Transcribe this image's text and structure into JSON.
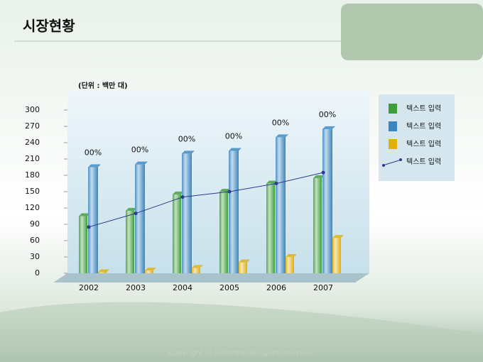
{
  "header": {
    "title": "시장현황"
  },
  "footer": "Copyright ⓒ bizforms All rights reserved.",
  "chart_data": {
    "type": "bar-line",
    "unit_label": "(단위 : 백만 대)",
    "categories": [
      "2002",
      "2003",
      "2004",
      "2005",
      "2006",
      "2007"
    ],
    "series": [
      {
        "name": "텍스트 입력",
        "color": "#3f9e3a",
        "kind": "bar",
        "values": [
          105,
          115,
          145,
          150,
          165,
          175
        ]
      },
      {
        "name": "텍스트 입력",
        "color": "#3a86c0",
        "kind": "bar",
        "values": [
          195,
          200,
          220,
          225,
          250,
          265
        ]
      },
      {
        "name": "텍스트 입력",
        "color": "#e0b00c",
        "kind": "bar",
        "values": [
          2,
          5,
          10,
          20,
          30,
          65
        ]
      },
      {
        "name": "텍스트 입력",
        "color": "#2e3a8c",
        "kind": "line",
        "values": [
          85,
          110,
          140,
          150,
          165,
          185
        ]
      }
    ],
    "annotations": [
      "00%",
      "00%",
      "00%",
      "00%",
      "00%",
      "00%"
    ],
    "ylim": [
      0,
      300
    ],
    "yticks": [
      0,
      30,
      60,
      90,
      120,
      150,
      180,
      210,
      240,
      270,
      300
    ],
    "legend": "right"
  }
}
